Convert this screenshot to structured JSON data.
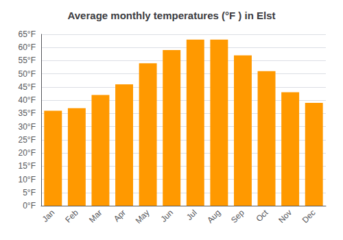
{
  "chart_data": {
    "type": "bar",
    "title": "Average monthly temperatures (°F ) in Elst",
    "categories": [
      "Jan",
      "Feb",
      "Mar",
      "Apr",
      "May",
      "Jun",
      "Jul",
      "Aug",
      "Sep",
      "Oct",
      "Nov",
      "Dec"
    ],
    "values": [
      36,
      37,
      42,
      46,
      54,
      59,
      63,
      63,
      57,
      51,
      43,
      39
    ],
    "color": "#FF9900",
    "ylim": [
      0,
      65
    ],
    "yticks": [
      {
        "value": 0,
        "label": "0°F"
      },
      {
        "value": 5,
        "label": "5°F"
      },
      {
        "value": 10,
        "label": "10°F"
      },
      {
        "value": 15,
        "label": "15°F"
      },
      {
        "value": 20,
        "label": "20°F"
      },
      {
        "value": 25,
        "label": "25°F"
      },
      {
        "value": 30,
        "label": "30°F"
      },
      {
        "value": 35,
        "label": "35°F"
      },
      {
        "value": 40,
        "label": "40°F"
      },
      {
        "value": 45,
        "label": "45°F"
      },
      {
        "value": 50,
        "label": "50°F"
      },
      {
        "value": 55,
        "label": "55°F"
      },
      {
        "value": 60,
        "label": "60°F"
      },
      {
        "value": 65,
        "label": "65°F"
      }
    ],
    "grid": true
  }
}
